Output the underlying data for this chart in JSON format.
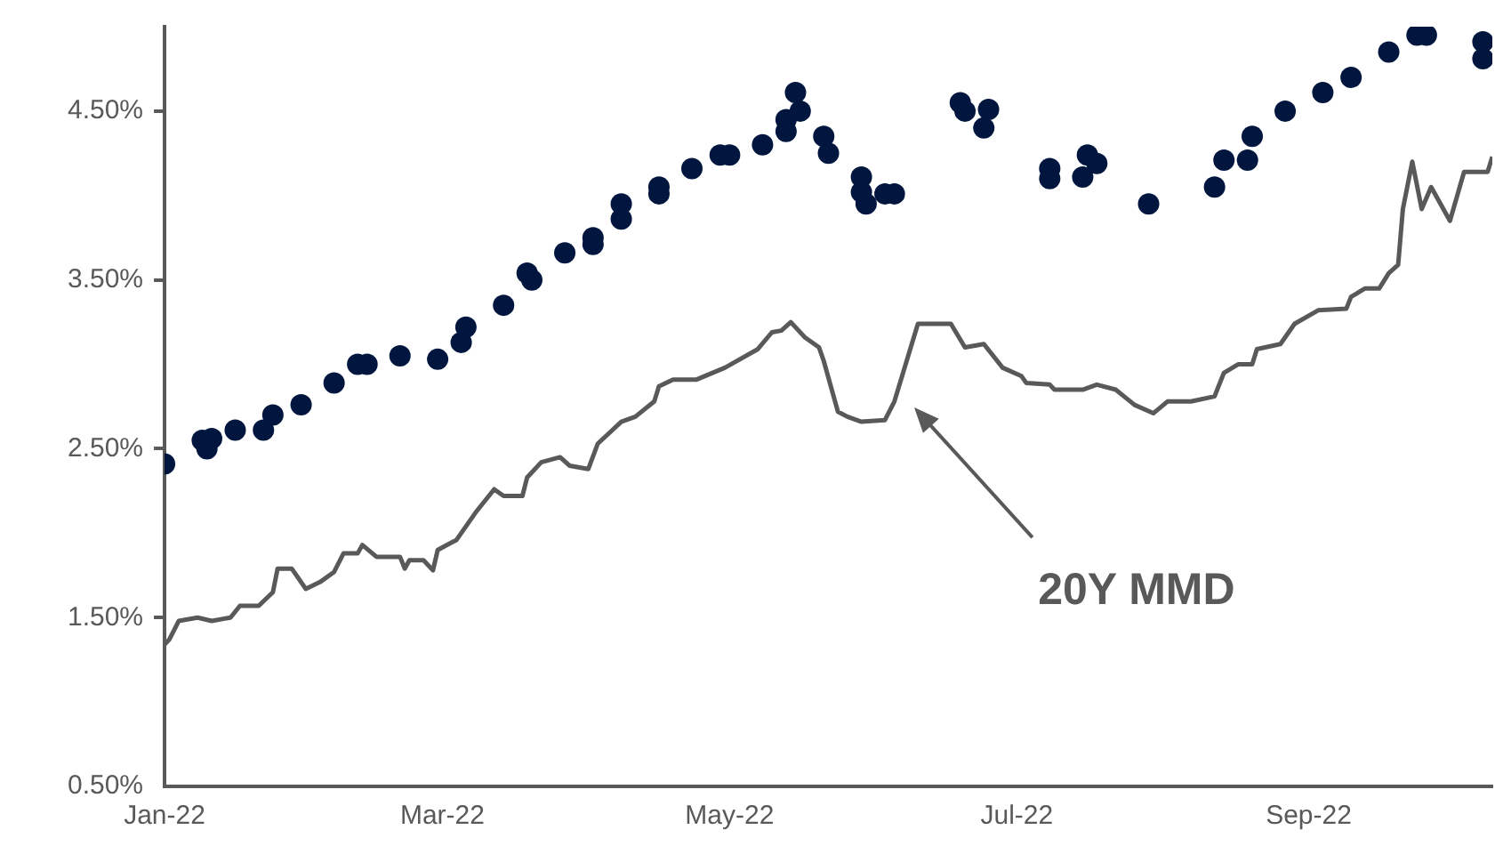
{
  "chart_data": {
    "type": "scatter",
    "xlim": [
      "2022-01-01",
      "2022-10-10"
    ],
    "xticks": [
      {
        "value": "2022-01-01",
        "label": "Jan-22"
      },
      {
        "value": "2022-03-01",
        "label": "Mar-22"
      },
      {
        "value": "2022-05-01",
        "label": "May-22"
      },
      {
        "value": "2022-07-01",
        "label": "Jul-22"
      },
      {
        "value": "2022-09-01",
        "label": "Sep-22"
      }
    ],
    "ylim": [
      0.5,
      5.0
    ],
    "yticks": [
      {
        "value": 0.5,
        "label": "0.50%"
      },
      {
        "value": 1.5,
        "label": "1.50%"
      },
      {
        "value": 2.5,
        "label": "2.50%"
      },
      {
        "value": 3.5,
        "label": "3.50%"
      },
      {
        "value": 4.5,
        "label": "4.50%"
      }
    ],
    "grid": false,
    "legend": false,
    "series": [
      {
        "type": "scatter",
        "color": "#00163f",
        "marker": "circle",
        "x": [
          "2022-01-01",
          "2022-01-09",
          "2022-01-10",
          "2022-01-11",
          "2022-01-16",
          "2022-01-22",
          "2022-01-24",
          "2022-01-30",
          "2022-02-06",
          "2022-02-11",
          "2022-02-13",
          "2022-02-20",
          "2022-02-28",
          "2022-03-05",
          "2022-03-06",
          "2022-03-14",
          "2022-03-19",
          "2022-03-20",
          "2022-03-27",
          "2022-04-02",
          "2022-04-02",
          "2022-04-08",
          "2022-04-08",
          "2022-04-16",
          "2022-04-16",
          "2022-04-23",
          "2022-04-29",
          "2022-05-01",
          "2022-05-08",
          "2022-05-13",
          "2022-05-13",
          "2022-05-15",
          "2022-05-16",
          "2022-05-21",
          "2022-05-22",
          "2022-05-29",
          "2022-05-29",
          "2022-05-30",
          "2022-06-03",
          "2022-06-05",
          "2022-06-19",
          "2022-06-20",
          "2022-06-25",
          "2022-06-24",
          "2022-07-08",
          "2022-07-08",
          "2022-07-15",
          "2022-07-16",
          "2022-07-18",
          "2022-07-29",
          "2022-08-12",
          "2022-08-14",
          "2022-08-19",
          "2022-08-20",
          "2022-08-27",
          "2022-09-04",
          "2022-09-10",
          "2022-09-18",
          "2022-09-24",
          "2022-09-26",
          "2022-10-08",
          "2022-10-08"
        ],
        "values": [
          2.41,
          2.55,
          2.5,
          2.56,
          2.61,
          2.61,
          2.7,
          2.76,
          2.89,
          3.0,
          3.0,
          3.05,
          3.03,
          3.13,
          3.22,
          3.35,
          3.54,
          3.5,
          3.66,
          3.75,
          3.71,
          3.95,
          3.86,
          4.05,
          4.01,
          4.16,
          4.24,
          4.24,
          4.3,
          4.38,
          4.45,
          4.61,
          4.5,
          4.35,
          4.25,
          4.11,
          4.02,
          3.95,
          4.01,
          4.01,
          4.55,
          4.5,
          4.51,
          4.4,
          4.16,
          4.1,
          4.11,
          4.24,
          4.19,
          3.95,
          4.05,
          4.21,
          4.21,
          4.35,
          4.5,
          4.61,
          4.7,
          4.85,
          4.95,
          4.95,
          4.91,
          4.81
        ]
      },
      {
        "type": "line",
        "color": "#595959",
        "marker": "none",
        "line_style": "solid",
        "x": [
          "2022-01-01",
          "2022-01-02",
          "2022-01-04",
          "2022-01-08",
          "2022-01-11",
          "2022-01-15",
          "2022-01-17",
          "2022-01-21",
          "2022-01-24",
          "2022-01-25",
          "2022-01-28",
          "2022-01-31",
          "2022-02-03",
          "2022-02-06",
          "2022-02-08",
          "2022-02-11",
          "2022-02-12",
          "2022-02-15",
          "2022-02-20",
          "2022-02-21",
          "2022-02-22",
          "2022-02-25",
          "2022-02-27",
          "2022-02-28",
          "2022-03-04",
          "2022-03-08",
          "2022-03-12",
          "2022-03-14",
          "2022-03-18",
          "2022-03-19",
          "2022-03-22",
          "2022-03-26",
          "2022-03-28",
          "2022-04-01",
          "2022-04-03",
          "2022-04-08",
          "2022-04-11",
          "2022-04-15",
          "2022-04-16",
          "2022-04-19",
          "2022-04-24",
          "2022-04-30",
          "2022-05-07",
          "2022-05-10",
          "2022-05-12",
          "2022-05-14",
          "2022-05-17",
          "2022-05-20",
          "2022-05-21",
          "2022-05-24",
          "2022-05-26",
          "2022-05-29",
          "2022-06-03",
          "2022-06-05",
          "2022-06-10",
          "2022-06-17",
          "2022-06-20",
          "2022-06-24",
          "2022-06-28",
          "2022-07-02",
          "2022-07-03",
          "2022-07-08",
          "2022-07-09",
          "2022-07-15",
          "2022-07-18",
          "2022-07-22",
          "2022-07-26",
          "2022-07-30",
          "2022-08-02",
          "2022-08-07",
          "2022-08-12",
          "2022-08-14",
          "2022-08-17",
          "2022-08-20",
          "2022-08-21",
          "2022-08-26",
          "2022-08-29",
          "2022-09-03",
          "2022-09-09",
          "2022-09-10",
          "2022-09-13",
          "2022-09-16",
          "2022-09-18",
          "2022-09-20",
          "2022-09-21",
          "2022-09-23",
          "2022-09-25",
          "2022-09-27",
          "2022-10-01",
          "2022-10-04",
          "2022-10-09",
          "2022-10-10"
        ],
        "values": [
          1.34,
          1.37,
          1.48,
          1.5,
          1.48,
          1.5,
          1.57,
          1.57,
          1.65,
          1.79,
          1.79,
          1.67,
          1.71,
          1.77,
          1.88,
          1.88,
          1.93,
          1.86,
          1.86,
          1.79,
          1.84,
          1.84,
          1.78,
          1.9,
          1.96,
          2.12,
          2.26,
          2.22,
          2.22,
          2.33,
          2.42,
          2.45,
          2.4,
          2.38,
          2.53,
          2.66,
          2.69,
          2.78,
          2.87,
          2.91,
          2.91,
          2.98,
          3.09,
          3.19,
          3.2,
          3.25,
          3.16,
          3.1,
          3.02,
          2.72,
          2.69,
          2.66,
          2.67,
          2.78,
          3.24,
          3.24,
          3.1,
          3.12,
          2.98,
          2.93,
          2.89,
          2.88,
          2.85,
          2.85,
          2.88,
          2.85,
          2.76,
          2.71,
          2.78,
          2.78,
          2.81,
          2.95,
          3.0,
          3.0,
          3.09,
          3.12,
          3.24,
          3.32,
          3.33,
          3.4,
          3.45,
          3.45,
          3.54,
          3.59,
          3.92,
          4.2,
          3.92,
          4.05,
          3.85,
          4.14,
          4.14,
          4.23
        ]
      }
    ],
    "annotations": [
      "20Y MMD"
    ]
  }
}
